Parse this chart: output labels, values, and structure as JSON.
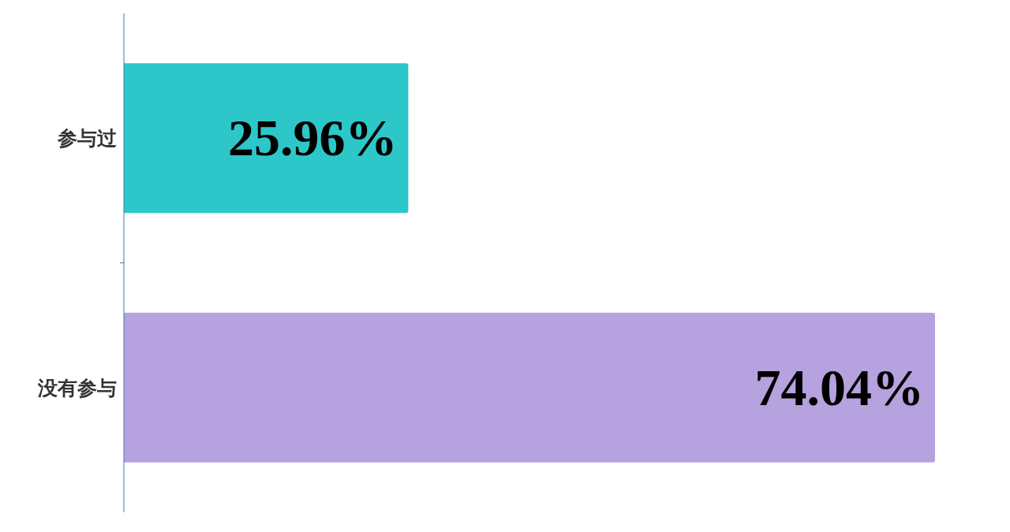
{
  "chart_data": {
    "type": "bar",
    "orientation": "horizontal",
    "categories": [
      "参与过",
      "没有参与"
    ],
    "values": [
      25.96,
      74.04
    ],
    "colors": [
      "#2ec7c9",
      "#b6a2de"
    ],
    "value_labels": [
      "25.96%",
      "74.04%"
    ]
  }
}
